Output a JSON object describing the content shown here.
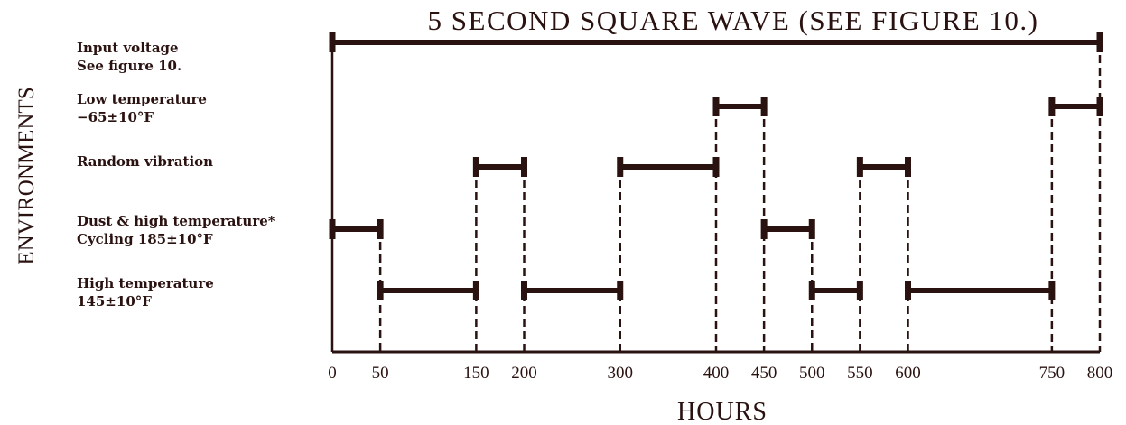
{
  "title": "5 SECOND SQUARE WAVE (SEE FIGURE 10.)",
  "y_axis_label": "ENVIRONMENTS",
  "x_axis_label": "HOURS",
  "colors": {
    "ink": "#2a1210"
  },
  "x_ticks": [
    0,
    50,
    150,
    200,
    300,
    400,
    450,
    500,
    550,
    600,
    750,
    800
  ],
  "rows": [
    {
      "label_line1": "Input voltage",
      "label_line2": "See figure 10.",
      "segments": [
        [
          0,
          800
        ]
      ]
    },
    {
      "label_line1": "Low temperature",
      "label_line2": "−65±10°F",
      "segments": [
        [
          400,
          450
        ],
        [
          750,
          800
        ]
      ]
    },
    {
      "label_line1": "Random vibration",
      "label_line2": "",
      "segments": [
        [
          150,
          200
        ],
        [
          300,
          400
        ],
        [
          550,
          600
        ]
      ]
    },
    {
      "label_line1": "Dust & high temperature*",
      "label_line2": "Cycling 185±10°F",
      "segments": [
        [
          0,
          50
        ],
        [
          450,
          500
        ]
      ]
    },
    {
      "label_line1": "High temperature",
      "label_line2": "145±10°F",
      "segments": [
        [
          50,
          150
        ],
        [
          200,
          300
        ],
        [
          500,
          550
        ],
        [
          600,
          750
        ]
      ]
    }
  ]
}
